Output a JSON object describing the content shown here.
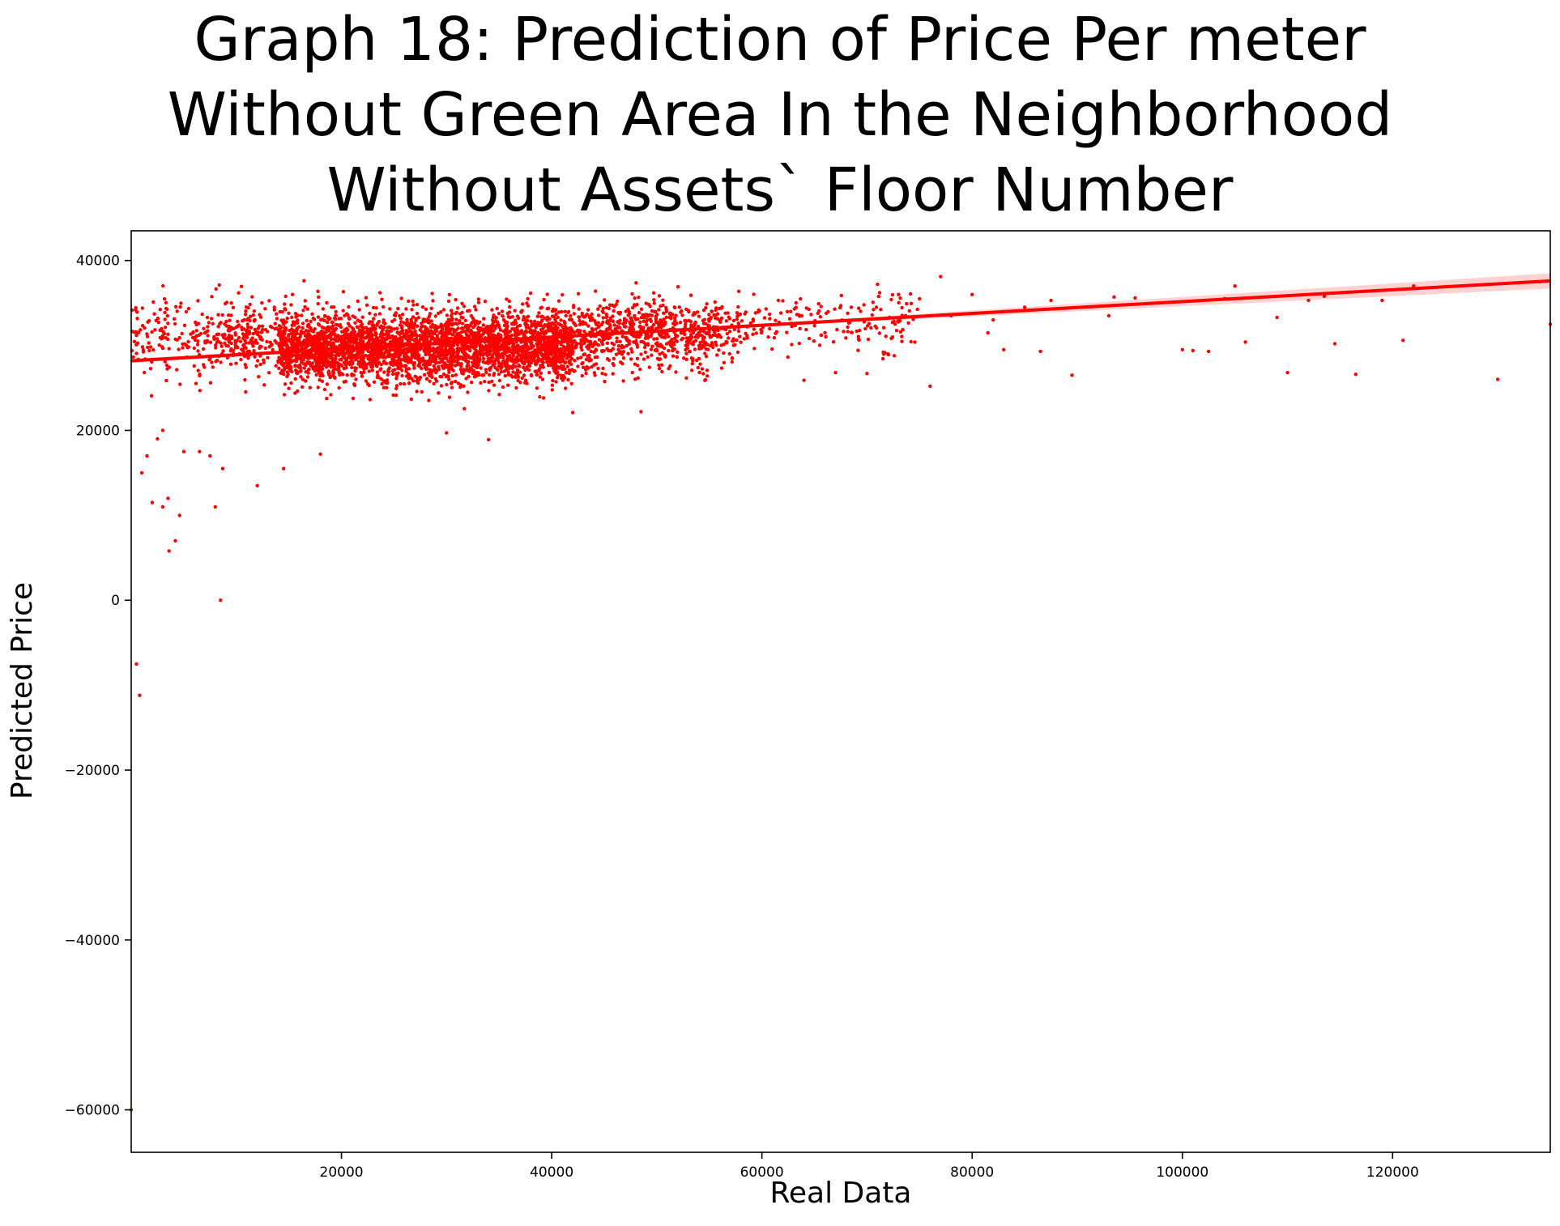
{
  "chart_data": {
    "type": "scatter",
    "title": [
      "Graph 18: Prediction of Price Per meter",
      "Without Green Area In the Neighborhood",
      "Without Assets` Floor Number"
    ],
    "xlabel": "Real Data",
    "ylabel": "Predicted Price",
    "xlim": [
      0,
      135000
    ],
    "ylim": [
      -65000,
      43500
    ],
    "xticks": [
      20000,
      40000,
      60000,
      80000,
      100000,
      120000
    ],
    "xtick_labels": [
      "20000",
      "40000",
      "60000",
      "80000",
      "100000",
      "120000"
    ],
    "yticks": [
      40000,
      20000,
      0,
      -20000,
      -40000,
      -60000
    ],
    "ytick_labels": [
      "40000",
      "20000",
      "0",
      "−20000",
      "−40000",
      "−60000"
    ],
    "grid": false,
    "color": "#ff0000",
    "regression_line": {
      "x": [
        0,
        135000
      ],
      "y": [
        28200,
        37600
      ]
    },
    "clusters": [
      {
        "x_range": [
          14000,
          42000
        ],
        "y_center": 29500,
        "y_spread": 3200,
        "count": 2600
      },
      {
        "x_range": [
          8000,
          55000
        ],
        "y_center": 31000,
        "y_spread": 3500,
        "count": 1200
      },
      {
        "x_range": [
          0,
          12000
        ],
        "y_center": 31000,
        "y_spread": 3500,
        "count": 220
      },
      {
        "x_range": [
          40000,
          58000
        ],
        "y_center": 31500,
        "y_spread": 3000,
        "count": 500
      },
      {
        "x_range": [
          55000,
          75000
        ],
        "y_center": 32500,
        "y_spread": 3000,
        "count": 180
      }
    ],
    "sample_points": [
      {
        "x": 1000,
        "y": 15000
      },
      {
        "x": 1500,
        "y": 17000
      },
      {
        "x": 2000,
        "y": 11500
      },
      {
        "x": 3000,
        "y": 11000
      },
      {
        "x": 3500,
        "y": 12000
      },
      {
        "x": 3600,
        "y": 5800
      },
      {
        "x": 4200,
        "y": 7000
      },
      {
        "x": 4600,
        "y": 10000
      },
      {
        "x": 5000,
        "y": 17500
      },
      {
        "x": 6500,
        "y": 17500
      },
      {
        "x": 7500,
        "y": 17000
      },
      {
        "x": 8000,
        "y": 11000
      },
      {
        "x": 8700,
        "y": 15500
      },
      {
        "x": 12000,
        "y": 13500
      },
      {
        "x": 14500,
        "y": 15500
      },
      {
        "x": 8500,
        "y": 0
      },
      {
        "x": 500,
        "y": -7500
      },
      {
        "x": 800,
        "y": -11200
      },
      {
        "x": 0,
        "y": -60000
      },
      {
        "x": 3000,
        "y": 20000
      },
      {
        "x": 2500,
        "y": 19000
      },
      {
        "x": 18000,
        "y": 17200
      },
      {
        "x": 30000,
        "y": 19700
      },
      {
        "x": 34000,
        "y": 18900
      },
      {
        "x": 42000,
        "y": 22100
      },
      {
        "x": 48500,
        "y": 22200
      },
      {
        "x": 64000,
        "y": 25900
      },
      {
        "x": 67000,
        "y": 26800
      },
      {
        "x": 70000,
        "y": 26700
      },
      {
        "x": 72000,
        "y": 29000
      },
      {
        "x": 76000,
        "y": 25200
      },
      {
        "x": 77000,
        "y": 38100
      },
      {
        "x": 80000,
        "y": 36000
      },
      {
        "x": 82000,
        "y": 33000
      },
      {
        "x": 83000,
        "y": 29500
      },
      {
        "x": 85000,
        "y": 34500
      },
      {
        "x": 86500,
        "y": 29300
      },
      {
        "x": 87500,
        "y": 35300
      },
      {
        "x": 89500,
        "y": 26500
      },
      {
        "x": 93000,
        "y": 33500
      },
      {
        "x": 93500,
        "y": 35700
      },
      {
        "x": 95500,
        "y": 35600
      },
      {
        "x": 100000,
        "y": 29500
      },
      {
        "x": 101000,
        "y": 29400
      },
      {
        "x": 102500,
        "y": 29300
      },
      {
        "x": 104000,
        "y": 35500
      },
      {
        "x": 105000,
        "y": 37000
      },
      {
        "x": 106000,
        "y": 30400
      },
      {
        "x": 109000,
        "y": 33300
      },
      {
        "x": 110000,
        "y": 26800
      },
      {
        "x": 112000,
        "y": 35300
      },
      {
        "x": 113500,
        "y": 35800
      },
      {
        "x": 114500,
        "y": 30200
      },
      {
        "x": 116500,
        "y": 26600
      },
      {
        "x": 119000,
        "y": 35300
      },
      {
        "x": 121000,
        "y": 30600
      },
      {
        "x": 122000,
        "y": 37000
      },
      {
        "x": 130000,
        "y": 26000
      },
      {
        "x": 134000,
        "y": 37500
      },
      {
        "x": 135000,
        "y": 32500
      },
      {
        "x": 81500,
        "y": 31500
      },
      {
        "x": 73000,
        "y": 36000
      },
      {
        "x": 75000,
        "y": 35500
      },
      {
        "x": 78000,
        "y": 33500
      },
      {
        "x": 68500,
        "y": 34500
      },
      {
        "x": 71000,
        "y": 37200
      },
      {
        "x": 66000,
        "y": 31500
      }
    ]
  }
}
